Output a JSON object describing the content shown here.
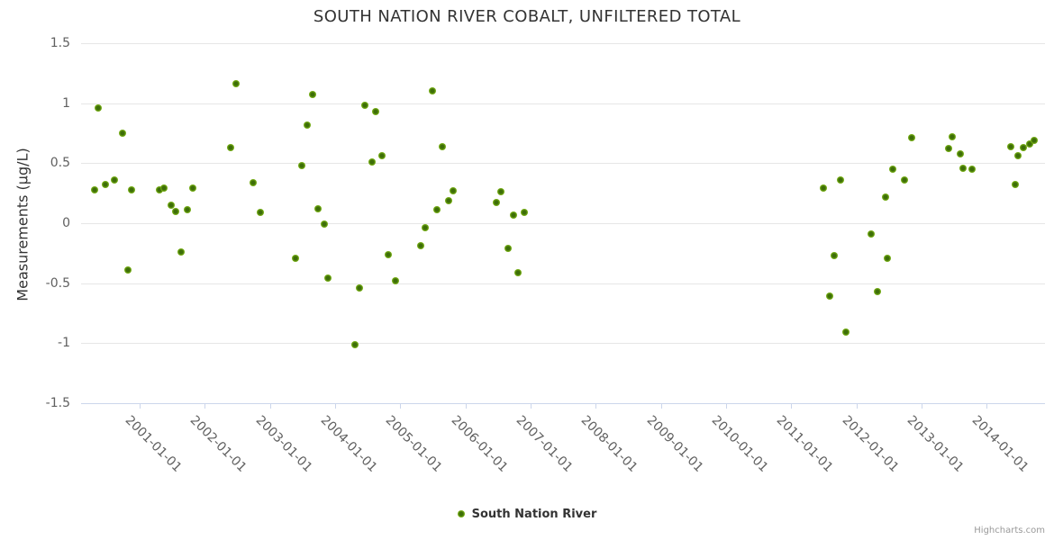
{
  "title": "SOUTH NATION RIVER COBALT, UNFILTERED TOTAL",
  "y_axis": {
    "title": "Measurements (µg/L)",
    "tick_labels": [
      "1.5",
      "1",
      "0.5",
      "0",
      "-0.5",
      "-1",
      "-1.5"
    ],
    "tick_values": [
      1.5,
      1,
      0.5,
      0,
      -0.5,
      -1,
      -1.5
    ],
    "min": -1.5,
    "max": 1.5
  },
  "x_axis": {
    "tick_labels": [
      "2001-01-01",
      "2002-01-01",
      "2003-01-01",
      "2004-01-01",
      "2005-01-01",
      "2006-01-01",
      "2007-01-01",
      "2008-01-01",
      "2009-01-01",
      "2010-01-01",
      "2011-01-01",
      "2012-01-01",
      "2013-01-01",
      "2014-01-01"
    ]
  },
  "legend": {
    "items": [
      {
        "label": "South Nation River",
        "marker": "green-dot"
      }
    ]
  },
  "credits": "Highcharts.com",
  "colors": {
    "series_green": "#7cb417",
    "point_center_green": "#3d6e08",
    "grid_line": "#e6e6e6",
    "axis_line": "#ccd6eb",
    "title_text": "#333333",
    "axis_label_text": "#606060",
    "credits_text": "#999999"
  },
  "chart_data": {
    "type": "scatter",
    "title": "SOUTH NATION RIVER COBALT, UNFILTERED TOTAL",
    "xlabel": "",
    "ylabel": "Measurements (µg/L)",
    "ylim": [
      -1.5,
      1.5
    ],
    "xlim_dates": [
      "2000-01-01",
      "2015-01-01"
    ],
    "grid": "horizontal-only",
    "legend_position": "bottom-center",
    "series": [
      {
        "name": "South Nation River",
        "color": "#7cb417",
        "points": [
          [
            "2000-04-22",
            0.28
          ],
          [
            "2000-05-14",
            0.96
          ],
          [
            "2000-06-24",
            0.32
          ],
          [
            "2000-08-14",
            0.36
          ],
          [
            "2000-09-24",
            0.75
          ],
          [
            "2000-10-26",
            -0.39
          ],
          [
            "2000-11-14",
            0.28
          ],
          [
            "2001-04-20",
            0.28
          ],
          [
            "2001-05-19",
            0.29
          ],
          [
            "2001-06-28",
            0.15
          ],
          [
            "2001-07-20",
            0.1
          ],
          [
            "2001-08-22",
            -0.24
          ],
          [
            "2001-09-24",
            0.11
          ],
          [
            "2001-10-26",
            0.29
          ],
          [
            "2002-05-26",
            0.63
          ],
          [
            "2002-06-24",
            1.16
          ],
          [
            "2002-10-01",
            0.34
          ],
          [
            "2002-11-07",
            0.09
          ],
          [
            "2003-05-23",
            -0.29
          ],
          [
            "2003-06-28",
            0.48
          ],
          [
            "2003-07-27",
            0.82
          ],
          [
            "2003-08-26",
            1.07
          ],
          [
            "2003-09-28",
            0.12
          ],
          [
            "2003-10-31",
            -0.01
          ],
          [
            "2003-11-22",
            -0.46
          ],
          [
            "2004-04-20",
            -1.01
          ],
          [
            "2004-05-15",
            -0.54
          ],
          [
            "2004-06-17",
            0.98
          ],
          [
            "2004-07-27",
            0.51
          ],
          [
            "2004-08-14",
            0.93
          ],
          [
            "2004-09-20",
            0.56
          ],
          [
            "2004-10-23",
            -0.26
          ],
          [
            "2004-12-02",
            -0.48
          ],
          [
            "2005-04-27",
            -0.19
          ],
          [
            "2005-05-23",
            -0.04
          ],
          [
            "2005-06-28",
            1.1
          ],
          [
            "2005-07-27",
            0.11
          ],
          [
            "2005-08-22",
            0.64
          ],
          [
            "2005-10-01",
            0.19
          ],
          [
            "2005-10-26",
            0.27
          ],
          [
            "2006-06-24",
            0.17
          ],
          [
            "2006-07-20",
            0.26
          ],
          [
            "2006-08-26",
            -0.21
          ],
          [
            "2006-09-28",
            0.07
          ],
          [
            "2006-10-23",
            -0.41
          ],
          [
            "2006-11-25",
            0.09
          ],
          [
            "2011-07-02",
            0.29
          ],
          [
            "2011-08-04",
            -0.61
          ],
          [
            "2011-08-29",
            -0.27
          ],
          [
            "2011-10-05",
            0.36
          ],
          [
            "2011-11-03",
            -0.91
          ],
          [
            "2012-03-21",
            -0.09
          ],
          [
            "2012-04-27",
            -0.57
          ],
          [
            "2012-06-10",
            0.22
          ],
          [
            "2012-06-24",
            -0.29
          ],
          [
            "2012-07-23",
            0.45
          ],
          [
            "2012-09-27",
            0.36
          ],
          [
            "2012-11-07",
            0.71
          ],
          [
            "2013-06-03",
            0.62
          ],
          [
            "2013-06-24",
            0.72
          ],
          [
            "2013-08-07",
            0.58
          ],
          [
            "2013-08-22",
            0.46
          ],
          [
            "2013-10-09",
            0.45
          ],
          [
            "2014-05-15",
            0.64
          ],
          [
            "2014-06-10",
            0.32
          ],
          [
            "2014-06-24",
            0.56
          ],
          [
            "2014-07-27",
            0.63
          ],
          [
            "2014-08-29",
            0.66
          ],
          [
            "2014-09-24",
            0.69
          ]
        ]
      }
    ]
  }
}
